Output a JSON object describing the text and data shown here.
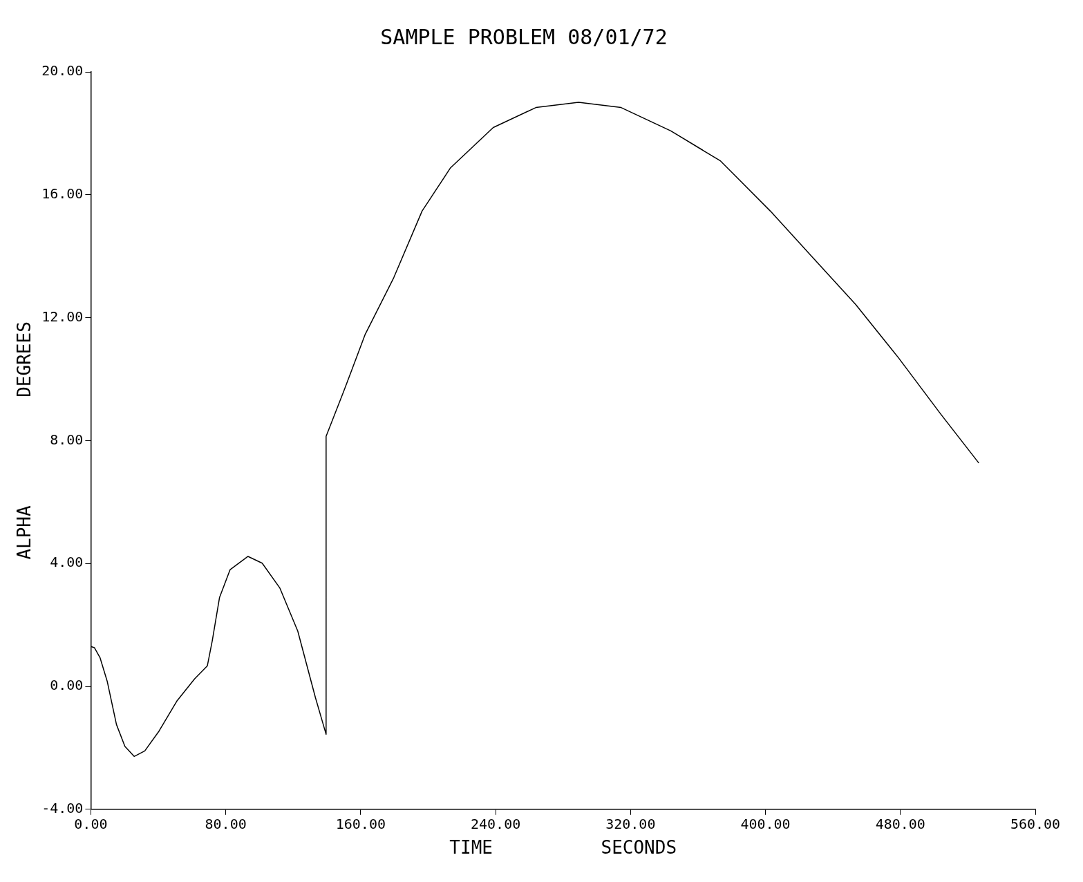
{
  "chart_data": {
    "type": "line",
    "title": "SAMPLE PROBLEM 08/01/72",
    "xlabel": "TIME          SECONDS",
    "ylabel": "ALPHA          DEGREES",
    "x": [
      0,
      2.1,
      5.5,
      9.7,
      15.2,
      20.2,
      25.7,
      32,
      40.5,
      51,
      61.5,
      69.1,
      72,
      76.3,
      82.6,
      93.2,
      101.6,
      112,
      122.7,
      133.2,
      139.5,
      139.5,
      150,
      162.7,
      179.6,
      196.4,
      213.3,
      238.6,
      263.9,
      289.2,
      314.4,
      343.9,
      373.4,
      402.9,
      428.2,
      453.5,
      478.8,
      504.1,
      526.5
    ],
    "values": [
      1.3,
      1.26,
      0.93,
      0.17,
      -1.24,
      -1.95,
      -2.28,
      -2.1,
      -1.45,
      -0.48,
      0.24,
      0.67,
      1.48,
      2.89,
      3.8,
      4.23,
      4.01,
      3.21,
      1.8,
      -0.37,
      -1.56,
      8.14,
      9.61,
      11.46,
      13.3,
      15.47,
      16.88,
      18.19,
      18.84,
      19.01,
      18.84,
      18.08,
      17.1,
      15.47,
      13.95,
      12.43,
      10.7,
      8.85,
      7.27
    ],
    "color": "#000000",
    "marker": "none",
    "line_style": "solid",
    "grid": false,
    "xlim": [
      0,
      560
    ],
    "xticks": [
      {
        "value": 0,
        "label": "0.00"
      },
      {
        "value": 80,
        "label": "80.00"
      },
      {
        "value": 160,
        "label": "160.00"
      },
      {
        "value": 240,
        "label": "240.00"
      },
      {
        "value": 320,
        "label": "320.00"
      },
      {
        "value": 400,
        "label": "400.00"
      },
      {
        "value": 480,
        "label": "480.00"
      },
      {
        "value": 560,
        "label": "560.00"
      }
    ],
    "ylim": [
      -4,
      20
    ],
    "yticks": [
      {
        "value": -4,
        "label": "-4.00"
      },
      {
        "value": 0,
        "label": "0.00"
      },
      {
        "value": 4,
        "label": "4.00"
      },
      {
        "value": 8,
        "label": "8.00"
      },
      {
        "value": 12,
        "label": "12.00"
      },
      {
        "value": 16,
        "label": "16.00"
      },
      {
        "value": 20,
        "label": "20.00"
      }
    ]
  }
}
